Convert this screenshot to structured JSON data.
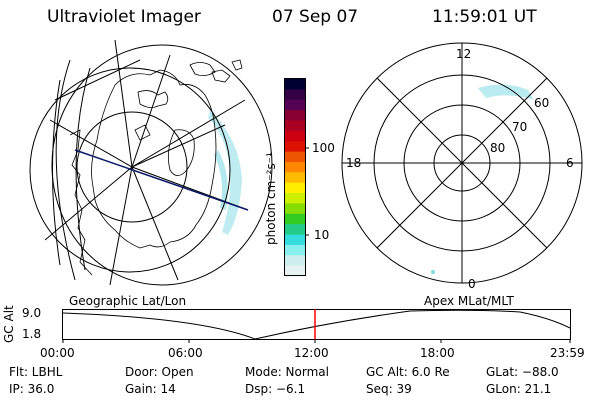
{
  "header": {
    "title": "Ultraviolet Imager",
    "date": "07 Sep 07",
    "time": "11:59:01 UT"
  },
  "colorbar": {
    "label": "photon cm⁻²s⁻¹",
    "ticks": [
      "100",
      "10"
    ],
    "colors": [
      "#000033",
      "#330044",
      "#550055",
      "#880033",
      "#aa0022",
      "#cc0011",
      "#dd1100",
      "#ee5500",
      "#ff8800",
      "#ffbb00",
      "#ffee00",
      "#ccee00",
      "#88dd00",
      "#33cc22",
      "#22cc88",
      "#33dddd",
      "#88eeee",
      "#cceeee",
      "#e6f2f2"
    ]
  },
  "polar": {
    "mlt_labels": [
      "12",
      "18",
      "6",
      "0"
    ],
    "lat_labels": [
      "60",
      "70",
      "80"
    ]
  },
  "map_labels": {
    "left": "Geographic Lat/Lon",
    "right": "Apex MLat/MLT"
  },
  "timeline": {
    "ylabel": "GC Alt",
    "y_ticks": [
      "9.0",
      "1.8"
    ],
    "x_ticks": [
      "00:00",
      "06:00",
      "12:00",
      "18:00",
      "23:59"
    ],
    "current_time": "11:59:01"
  },
  "status": {
    "flt": "Flt: LBHL",
    "door": "Door: Open",
    "mode": "Mode: Normal",
    "gcalt": "GC Alt: 6.0 Re",
    "glat": "GLat: −88.0",
    "ip": "IP: 36.0",
    "gain": "Gain: 14",
    "dsp": "Dsp:    −6.1",
    "seq": "Seq: 39",
    "glon": "GLon:  21.1"
  },
  "accent_colors": {
    "aurora": "#a8e6ec",
    "time_marker": "#ff0000"
  }
}
